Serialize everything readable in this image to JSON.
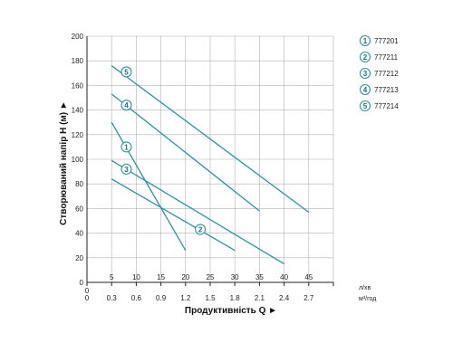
{
  "chart_data": {
    "type": "line",
    "xlabel": "Продуктивність Q ►",
    "ylabel": "Створюваний напір H (м) ►",
    "x_unit_top": "л/хв",
    "x_unit_bottom": "м³/год",
    "xlim": [
      0,
      50
    ],
    "ylim": [
      0,
      200
    ],
    "x_ticks": [
      0,
      5,
      10,
      15,
      20,
      25,
      30,
      35,
      40,
      45
    ],
    "x_ticks_secondary": [
      "0",
      "0.3",
      "0.6",
      "0.9",
      "1.2",
      "1.5",
      "1.8",
      "2.1",
      "2.4",
      "2.7"
    ],
    "y_ticks": [
      0,
      20,
      40,
      60,
      80,
      100,
      120,
      140,
      160,
      180,
      200
    ],
    "grid": true,
    "legend_position": "right",
    "line_color": "#2a93a7",
    "series": [
      {
        "marker": "1",
        "name": "777201",
        "x": [
          5,
          20
        ],
        "y": [
          130,
          26
        ],
        "marker_at": [
          8,
          110
        ]
      },
      {
        "marker": "2",
        "name": "777211",
        "x": [
          5,
          30
        ],
        "y": [
          84,
          26
        ],
        "marker_at": [
          23,
          43
        ]
      },
      {
        "marker": "3",
        "name": "777212",
        "x": [
          5,
          40
        ],
        "y": [
          99,
          15
        ],
        "marker_at": [
          8,
          92
        ]
      },
      {
        "marker": "4",
        "name": "777213",
        "x": [
          5,
          35
        ],
        "y": [
          153,
          58
        ],
        "marker_at": [
          8,
          144
        ]
      },
      {
        "marker": "5",
        "name": "777214",
        "x": [
          5,
          45
        ],
        "y": [
          176,
          57
        ],
        "marker_at": [
          8,
          171
        ]
      }
    ]
  }
}
